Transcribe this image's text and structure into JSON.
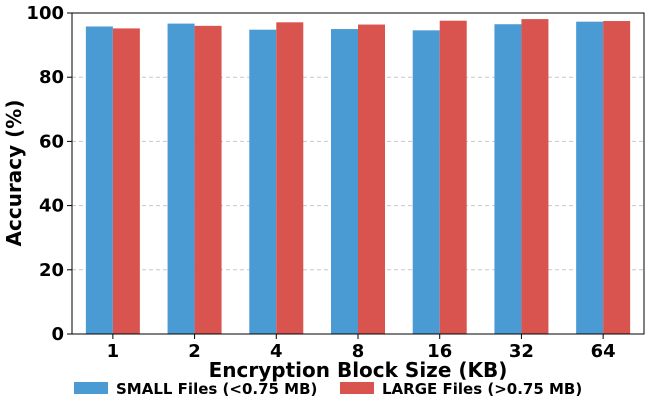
{
  "chart_data": {
    "type": "bar",
    "title": "",
    "xlabel": "Encryption Block Size (KB)",
    "ylabel": "Accuracy (%)",
    "categories": [
      "1",
      "2",
      "4",
      "8",
      "16",
      "32",
      "64"
    ],
    "series": [
      {
        "name": "SMALL Files (<0.75 MB)",
        "color": "#4a9bd4",
        "values": [
          95.8,
          96.7,
          94.8,
          95.0,
          94.6,
          96.5,
          97.3
        ]
      },
      {
        "name": "LARGE Files (>0.75 MB)",
        "color": "#d9534f",
        "values": [
          95.2,
          96.0,
          97.1,
          96.4,
          97.6,
          98.1,
          97.5
        ]
      }
    ],
    "ylim": [
      0,
      100
    ],
    "yticks": [
      0,
      20,
      40,
      60,
      80,
      100
    ],
    "grid": "horizontal-dashed",
    "legend_position": "bottom-center"
  }
}
